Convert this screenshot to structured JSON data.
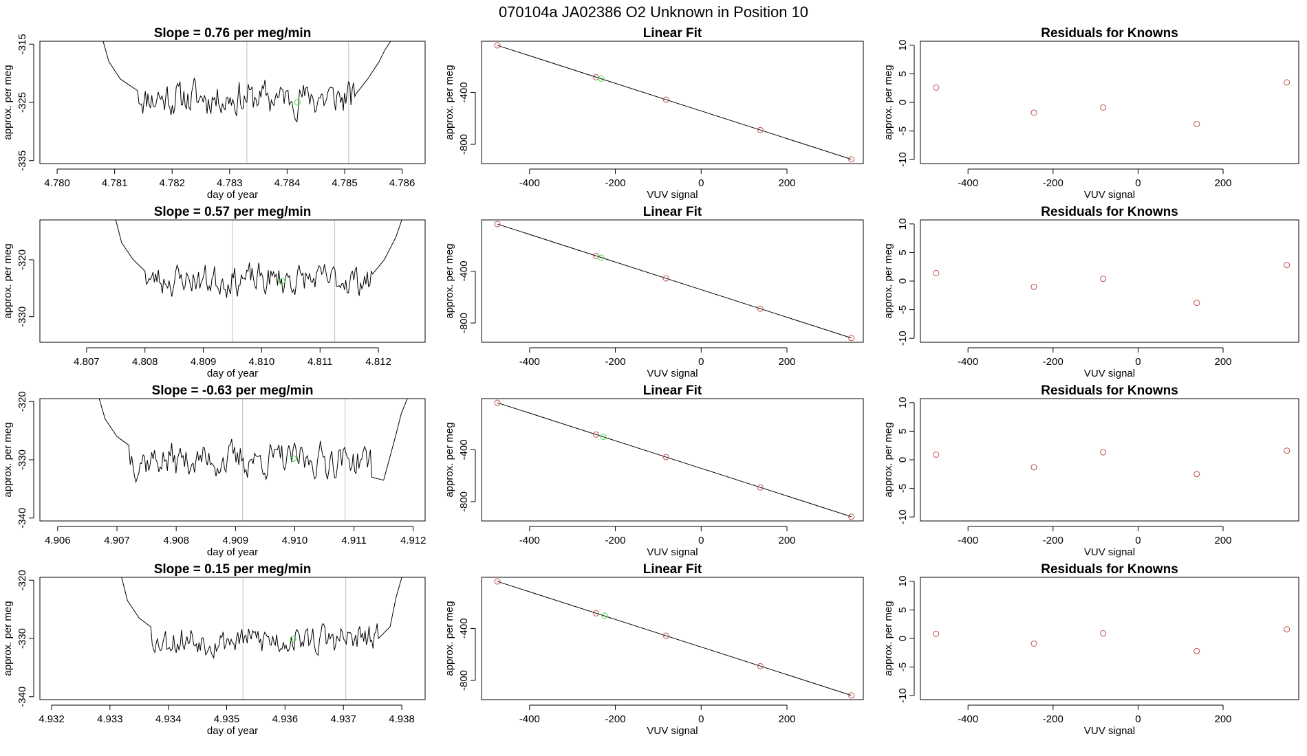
{
  "page": {
    "title": "070104a      JA02386   O2 Unknown in Position  10"
  },
  "colors": {
    "trace": "#000000",
    "known_point": "#c0504d",
    "unknown_point": "#3fdc3f",
    "window_line": "#c8c8c8",
    "fit_line": "#000000"
  },
  "chart_data": [
    {
      "type": "line",
      "row": 1,
      "title": "Slope =  0.76  per meg/min",
      "xlabel": "day of year",
      "ylabel": "approx. per meg",
      "xlim": [
        4.7797,
        4.7864
      ],
      "ylim": [
        -335.5,
        -314.5
      ],
      "xticks": [
        4.78,
        4.781,
        4.782,
        4.783,
        4.784,
        4.785,
        4.786
      ],
      "xtick_labels": [
        "4.780",
        "4.781",
        "4.782",
        "4.783",
        "4.784",
        "4.785",
        "4.786"
      ],
      "yticks": [
        -315,
        -325,
        -335
      ],
      "ytick_labels": [
        "-315",
        "-325",
        "-335"
      ],
      "window_lines": [
        4.7833,
        4.78507
      ],
      "unknown_point": [
        4.78418,
        -325.0
      ],
      "trace": {
        "start": 4.7808,
        "end": 4.7858,
        "mean": -324.2,
        "amp": 2.7,
        "seed": 11,
        "left_edge": [
          [
            4.7808,
            -314.5
          ],
          [
            4.7809,
            -318.0
          ],
          [
            4.7811,
            -321.0
          ],
          [
            4.7814,
            -323.0
          ]
        ],
        "right_edge": [
          [
            4.7852,
            -323.5
          ],
          [
            4.7854,
            -321.0
          ],
          [
            4.7856,
            -318.0
          ],
          [
            4.7857,
            -316.0
          ],
          [
            4.7858,
            -314.5
          ]
        ]
      }
    },
    {
      "type": "line",
      "row": 2,
      "title": "Slope =  0.57  per meg/min",
      "xlabel": "day of year",
      "ylabel": "approx. per meg",
      "xlim": [
        4.8062,
        4.8128
      ],
      "ylim": [
        -334.5,
        -313.0
      ],
      "xticks": [
        4.807,
        4.808,
        4.809,
        4.81,
        4.811,
        4.812
      ],
      "xtick_labels": [
        "4.807",
        "4.808",
        "4.809",
        "4.810",
        "4.811",
        "4.812"
      ],
      "yticks": [
        -320,
        -330
      ],
      "ytick_labels": [
        "-320",
        "-330"
      ],
      "window_lines": [
        4.8095,
        4.81125
      ],
      "unknown_point": [
        4.81035,
        -323.8
      ],
      "trace": {
        "start": 4.8075,
        "end": 4.8124,
        "mean": -323.5,
        "amp": 2.4,
        "seed": 23,
        "left_edge": [
          [
            4.8075,
            -313.0
          ],
          [
            4.8076,
            -317.0
          ],
          [
            4.8078,
            -320.0
          ],
          [
            4.808,
            -322.0
          ]
        ],
        "right_edge": [
          [
            4.8119,
            -322.5
          ],
          [
            4.8121,
            -320.0
          ],
          [
            4.8123,
            -316.0
          ],
          [
            4.8124,
            -313.0
          ]
        ]
      }
    },
    {
      "type": "line",
      "row": 3,
      "title": "Slope =  -0.63  per meg/min",
      "xlabel": "day of year",
      "ylabel": "approx. per meg",
      "xlim": [
        4.9057,
        4.9122
      ],
      "ylim": [
        -340.5,
        -319.5
      ],
      "xticks": [
        4.906,
        4.907,
        4.908,
        4.909,
        4.91,
        4.911,
        4.912
      ],
      "xtick_labels": [
        "4.906",
        "4.907",
        "4.908",
        "4.909",
        "4.910",
        "4.911",
        "4.912"
      ],
      "yticks": [
        -320,
        -330,
        -340
      ],
      "ytick_labels": [
        "-320",
        "-330",
        "-340"
      ],
      "window_lines": [
        4.90912,
        4.91085
      ],
      "unknown_point": [
        4.90998,
        -329.8
      ],
      "trace": {
        "start": 4.9067,
        "end": 4.9119,
        "mean": -330.0,
        "amp": 2.6,
        "seed": 37,
        "left_edge": [
          [
            4.9067,
            -319.5
          ],
          [
            4.9068,
            -323.0
          ],
          [
            4.907,
            -326.0
          ],
          [
            4.9072,
            -327.5
          ]
        ],
        "right_edge": [
          [
            4.9113,
            -333.0
          ],
          [
            4.9115,
            -333.5
          ],
          [
            4.9117,
            -326.0
          ],
          [
            4.9118,
            -322.0
          ],
          [
            4.9119,
            -319.5
          ]
        ]
      }
    },
    {
      "type": "line",
      "row": 4,
      "title": "Slope =  0.15  per meg/min",
      "xlabel": "day of year",
      "ylabel": "approx. per meg",
      "xlim": [
        4.9318,
        4.9384
      ],
      "ylim": [
        -340.5,
        -319.5
      ],
      "xticks": [
        4.932,
        4.933,
        4.934,
        4.935,
        4.936,
        4.937,
        4.938
      ],
      "xtick_labels": [
        "4.932",
        "4.933",
        "4.934",
        "4.935",
        "4.936",
        "4.937",
        "4.938"
      ],
      "yticks": [
        -320,
        -330,
        -340
      ],
      "ytick_labels": [
        "-320",
        "-330",
        "-340"
      ],
      "window_lines": [
        4.93528,
        4.93704
      ],
      "unknown_point": [
        4.93614,
        -330.1
      ],
      "trace": {
        "start": 4.9332,
        "end": 4.938,
        "mean": -330.2,
        "amp": 2.3,
        "seed": 53,
        "left_edge": [
          [
            4.9332,
            -319.5
          ],
          [
            4.9333,
            -323.5
          ],
          [
            4.9335,
            -326.5
          ],
          [
            4.9337,
            -328.0
          ]
        ],
        "right_edge": [
          [
            4.9376,
            -330.0
          ],
          [
            4.9378,
            -328.0
          ],
          [
            4.9379,
            -323.0
          ],
          [
            4.938,
            -319.5
          ]
        ]
      }
    },
    {
      "type": "scatter",
      "row": 1,
      "title": "Linear Fit",
      "xlabel": "VUV signal",
      "ylabel": "approx. per meg",
      "xlim": [
        -512,
        378
      ],
      "ylim": [
        -948,
        -6
      ],
      "xticks": [
        -400,
        -200,
        0,
        200
      ],
      "xtick_labels": [
        "-400",
        "-200",
        "0",
        "200"
      ],
      "yticks": [
        -400,
        -800
      ],
      "ytick_labels": [
        "-400",
        "-800"
      ],
      "fit_line": [
        [
          -475,
          -38
        ],
        [
          350,
          -915
        ]
      ],
      "knowns": [
        [
          -475,
          -38
        ],
        [
          -245,
          -283
        ],
        [
          -82,
          -456
        ],
        [
          138,
          -690
        ],
        [
          350,
          -915
        ]
      ],
      "unknown": [
        -233,
        -294
      ]
    },
    {
      "type": "scatter",
      "row": 2,
      "title": "Linear Fit",
      "xlabel": "VUV signal",
      "ylabel": "approx. per meg",
      "xlim": [
        -512,
        378
      ],
      "ylim": [
        -948,
        -6
      ],
      "xticks": [
        -400,
        -200,
        0,
        200
      ],
      "xtick_labels": [
        "-400",
        "-200",
        "0",
        "200"
      ],
      "yticks": [
        -400,
        -800
      ],
      "ytick_labels": [
        "-400",
        "-800"
      ],
      "fit_line": [
        [
          -475,
          -38
        ],
        [
          350,
          -915
        ]
      ],
      "knowns": [
        [
          -475,
          -38
        ],
        [
          -245,
          -283
        ],
        [
          -82,
          -456
        ],
        [
          138,
          -690
        ],
        [
          350,
          -915
        ]
      ],
      "unknown": [
        -233,
        -297
      ]
    },
    {
      "type": "scatter",
      "row": 3,
      "title": "Linear Fit",
      "xlabel": "VUV signal",
      "ylabel": "approx. per meg",
      "xlim": [
        -512,
        378
      ],
      "ylim": [
        -948,
        -6
      ],
      "xticks": [
        -400,
        -200,
        0,
        200
      ],
      "xtick_labels": [
        "-400",
        "-200",
        "0",
        "200"
      ],
      "yticks": [
        -400,
        -800
      ],
      "ytick_labels": [
        "-400",
        "-800"
      ],
      "fit_line": [
        [
          -475,
          -38
        ],
        [
          350,
          -915
        ]
      ],
      "knowns": [
        [
          -475,
          -38
        ],
        [
          -245,
          -283
        ],
        [
          -82,
          -456
        ],
        [
          138,
          -690
        ],
        [
          350,
          -915
        ]
      ],
      "unknown": [
        -228,
        -300
      ]
    },
    {
      "type": "scatter",
      "row": 4,
      "title": "Linear Fit",
      "xlabel": "VUV signal",
      "ylabel": "approx. per meg",
      "xlim": [
        -512,
        378
      ],
      "ylim": [
        -948,
        -6
      ],
      "xticks": [
        -400,
        -200,
        0,
        200
      ],
      "xtick_labels": [
        "-400",
        "-200",
        "0",
        "200"
      ],
      "yticks": [
        -400,
        -800
      ],
      "ytick_labels": [
        "-400",
        "-800"
      ],
      "fit_line": [
        [
          -475,
          -38
        ],
        [
          350,
          -915
        ]
      ],
      "knowns": [
        [
          -475,
          -38
        ],
        [
          -245,
          -283
        ],
        [
          -82,
          -456
        ],
        [
          138,
          -690
        ],
        [
          350,
          -915
        ]
      ],
      "unknown": [
        -225,
        -302
      ]
    },
    {
      "type": "scatter",
      "row": 1,
      "title": "Residuals for Knowns",
      "xlabel": "VUV signal",
      "ylabel": "approx. per meg",
      "xlim": [
        -512,
        378
      ],
      "ylim": [
        -10.7,
        10.7
      ],
      "xticks": [
        -400,
        -200,
        0,
        200
      ],
      "xtick_labels": [
        "-400",
        "-200",
        "0",
        "200"
      ],
      "yticks": [
        10,
        5,
        0,
        -5,
        -10
      ],
      "ytick_labels": [
        "10",
        "5",
        "0",
        "-5",
        "-10"
      ],
      "points": [
        [
          -475,
          2.6
        ],
        [
          -245,
          -1.8
        ],
        [
          -82,
          -0.9
        ],
        [
          138,
          -3.8
        ],
        [
          350,
          3.5
        ]
      ]
    },
    {
      "type": "scatter",
      "row": 2,
      "title": "Residuals for Knowns",
      "xlabel": "VUV signal",
      "ylabel": "approx. per meg",
      "xlim": [
        -512,
        378
      ],
      "ylim": [
        -10.7,
        10.7
      ],
      "xticks": [
        -400,
        -200,
        0,
        200
      ],
      "xtick_labels": [
        "-400",
        "-200",
        "0",
        "200"
      ],
      "yticks": [
        10,
        5,
        0,
        -5,
        -10
      ],
      "ytick_labels": [
        "10",
        "5",
        "0",
        "-5",
        "-10"
      ],
      "points": [
        [
          -475,
          1.4
        ],
        [
          -245,
          -1.0
        ],
        [
          -82,
          0.4
        ],
        [
          138,
          -3.8
        ],
        [
          350,
          2.8
        ]
      ]
    },
    {
      "type": "scatter",
      "row": 3,
      "title": "Residuals for Knowns",
      "xlabel": "VUV signal",
      "ylabel": "approx. per meg",
      "xlim": [
        -512,
        378
      ],
      "ylim": [
        -10.7,
        10.7
      ],
      "xticks": [
        -400,
        -200,
        0,
        200
      ],
      "xtick_labels": [
        "-400",
        "-200",
        "0",
        "200"
      ],
      "yticks": [
        10,
        5,
        0,
        -5,
        -10
      ],
      "ytick_labels": [
        "10",
        "5",
        "0",
        "-5",
        "-10"
      ],
      "points": [
        [
          -475,
          0.9
        ],
        [
          -245,
          -1.3
        ],
        [
          -82,
          1.3
        ],
        [
          138,
          -2.5
        ],
        [
          350,
          1.6
        ]
      ]
    },
    {
      "type": "scatter",
      "row": 4,
      "title": "Residuals for Knowns",
      "xlabel": "VUV signal",
      "ylabel": "approx. per meg",
      "xlim": [
        -512,
        378
      ],
      "ylim": [
        -10.7,
        10.7
      ],
      "xticks": [
        -400,
        -200,
        0,
        200
      ],
      "xtick_labels": [
        "-400",
        "-200",
        "0",
        "200"
      ],
      "yticks": [
        10,
        5,
        0,
        -5,
        -10
      ],
      "ytick_labels": [
        "10",
        "5",
        "0",
        "-5",
        "-10"
      ],
      "points": [
        [
          -475,
          0.8
        ],
        [
          -245,
          -0.9
        ],
        [
          -82,
          0.9
        ],
        [
          138,
          -2.2
        ],
        [
          350,
          1.6
        ]
      ]
    }
  ]
}
